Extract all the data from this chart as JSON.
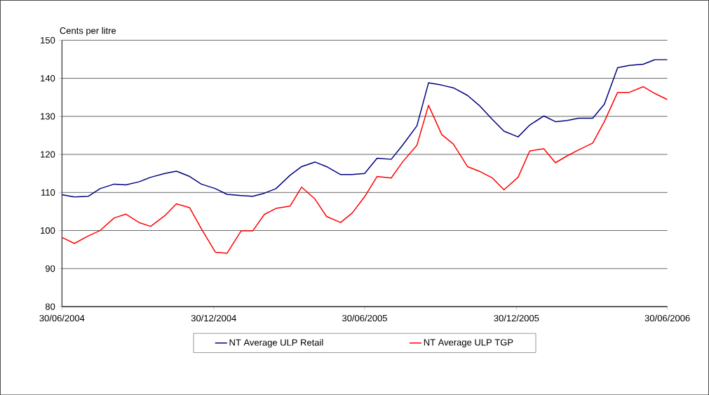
{
  "chart_data": {
    "type": "line",
    "ylabel": "Cents per litre",
    "x": [
      "2004-06-30",
      "2004-07-15",
      "2004-08-01",
      "2004-08-15",
      "2004-09-01",
      "2004-09-15",
      "2004-10-01",
      "2004-10-15",
      "2004-11-01",
      "2004-11-15",
      "2004-12-01",
      "2004-12-15",
      "2005-01-01",
      "2005-01-15",
      "2005-02-01",
      "2005-02-15",
      "2005-03-01",
      "2005-03-15",
      "2005-04-01",
      "2005-04-15",
      "2005-05-01",
      "2005-05-15",
      "2005-06-01",
      "2005-06-15",
      "2005-06-30",
      "2005-07-15",
      "2005-08-01",
      "2005-08-15",
      "2005-09-01",
      "2005-09-15",
      "2005-10-01",
      "2005-10-15",
      "2005-11-01",
      "2005-11-15",
      "2005-12-01",
      "2005-12-15",
      "2006-01-01",
      "2006-01-15",
      "2006-02-01",
      "2006-02-15",
      "2006-03-01",
      "2006-03-15",
      "2006-04-01",
      "2006-04-15",
      "2006-05-01",
      "2006-05-15",
      "2006-06-01",
      "2006-06-15",
      "2006-06-30"
    ],
    "series": [
      {
        "name": "NT Average ULP Retail",
        "color": "#000080",
        "values": [
          109.4,
          108.8,
          109,
          111,
          112.2,
          112,
          112.8,
          114,
          115,
          115.6,
          114.2,
          112.2,
          111,
          109.5,
          109.2,
          109,
          109.8,
          111,
          114.5,
          116.8,
          118,
          116.8,
          114.7,
          114.7,
          115,
          119,
          118.7,
          122.5,
          127.5,
          138.8,
          138.2,
          137.5,
          135.5,
          132.9,
          129.2,
          126.1,
          124.6,
          127.7,
          130.1,
          128.6,
          128.9,
          129.5,
          129.5,
          133.2,
          142.8,
          143.4,
          143.7,
          144.9,
          144.9
        ]
      },
      {
        "name": "NT Average ULP TGP",
        "color": "#ff0000",
        "values": [
          98.2,
          96.6,
          98.6,
          100,
          103.3,
          104.3,
          102.1,
          101.1,
          103.9,
          107,
          106,
          100.5,
          94.3,
          94,
          99.9,
          99.9,
          104.2,
          105.8,
          106.4,
          111.4,
          108.3,
          103.7,
          102.1,
          104.6,
          108.9,
          114.2,
          113.8,
          118.1,
          122.4,
          132.9,
          125.2,
          122.7,
          116.8,
          115.6,
          113.8,
          110.7,
          114,
          120.9,
          121.5,
          117.8,
          119.6,
          121.2,
          123,
          128.6,
          136.3,
          136.3,
          137.8,
          136,
          134.4
        ]
      }
    ],
    "xlim": [
      "2004-06-30",
      "2006-06-30"
    ],
    "xticks": [
      {
        "value": "2004-06-30",
        "label": "30/06/2004"
      },
      {
        "value": "2004-12-30",
        "label": "30/12/2004"
      },
      {
        "value": "2005-06-30",
        "label": "30/06/2005"
      },
      {
        "value": "2005-12-30",
        "label": "30/12/2005"
      },
      {
        "value": "2006-06-30",
        "label": "30/06/2006"
      }
    ],
    "ylim": [
      80,
      150
    ],
    "yticks": [
      80,
      90,
      100,
      110,
      120,
      130,
      140,
      150
    ],
    "grid": "y",
    "legend": "bottom",
    "marker": "none",
    "line_style": "solid"
  }
}
